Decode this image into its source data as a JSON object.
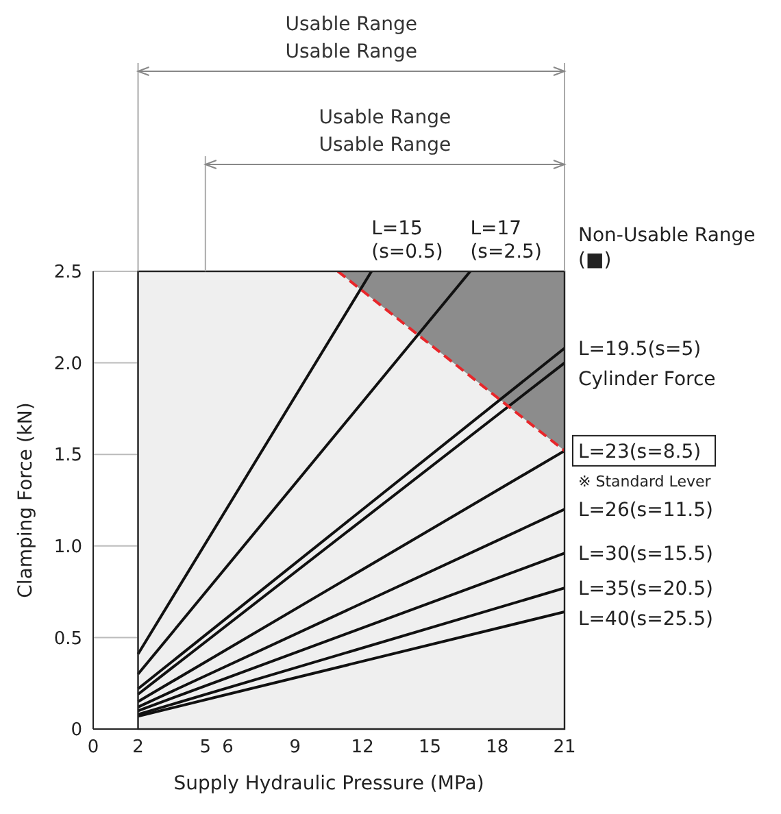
{
  "chart_data": {
    "type": "line",
    "xlabel": "Supply Hydraulic Pressure (MPa)",
    "ylabel": "Clamping Force (kN)",
    "xlim": [
      0,
      21
    ],
    "ylim": [
      0,
      2.5
    ],
    "xticks": [
      0,
      2,
      5,
      6,
      9,
      12,
      15,
      18,
      21
    ],
    "yticks": [
      0,
      0.5,
      {
        "value": 1,
        "label": "1.0"
      },
      1.5,
      {
        "value": 2,
        "label": "2.0"
      },
      2.5
    ],
    "grid": true,
    "line_style": "solid",
    "marker": "none",
    "annotations": [
      "Usable Range",
      "Usable Range",
      "Usable Range",
      "Usable Range",
      "Non-Usable Range (■)",
      "※ Standard Lever"
    ],
    "series": [
      {
        "name": "L=15 (s=0.5)",
        "color": "#111111",
        "x": [
          2,
          12.4
        ],
        "values": [
          0.41,
          2.5
        ]
      },
      {
        "name": "L=17 (s=2.5)",
        "color": "#111111",
        "x": [
          2,
          16.8
        ],
        "values": [
          0.3,
          2.5
        ]
      },
      {
        "name": "L=19.5(s=5)",
        "color": "#111111",
        "x": [
          2,
          21
        ],
        "values": [
          0.22,
          2.08
        ]
      },
      {
        "name": "Cylinder Force",
        "color": "#111111",
        "x": [
          2,
          21
        ],
        "values": [
          0.19,
          2.0
        ]
      },
      {
        "name": "L=23(s=8.5)",
        "color": "#111111",
        "x": [
          2,
          21
        ],
        "values": [
          0.15,
          1.52
        ]
      },
      {
        "name": "L=26(s=11.5)",
        "color": "#111111",
        "x": [
          2,
          21
        ],
        "values": [
          0.12,
          1.2
        ]
      },
      {
        "name": "L=30(s=15.5)",
        "color": "#111111",
        "x": [
          2,
          21
        ],
        "values": [
          0.1,
          0.96
        ]
      },
      {
        "name": "L=35(s=20.5)",
        "color": "#111111",
        "x": [
          2,
          21
        ],
        "values": [
          0.08,
          0.77
        ]
      },
      {
        "name": "L=40(s=25.5)",
        "color": "#111111",
        "x": [
          2,
          21
        ],
        "values": [
          0.07,
          0.64
        ]
      },
      {
        "type": "area",
        "color": "#e8262a",
        "line_style": "dashed",
        "x": [
          10.9,
          21
        ],
        "values": [
          2.5,
          1.52
        ]
      }
    ]
  }
}
